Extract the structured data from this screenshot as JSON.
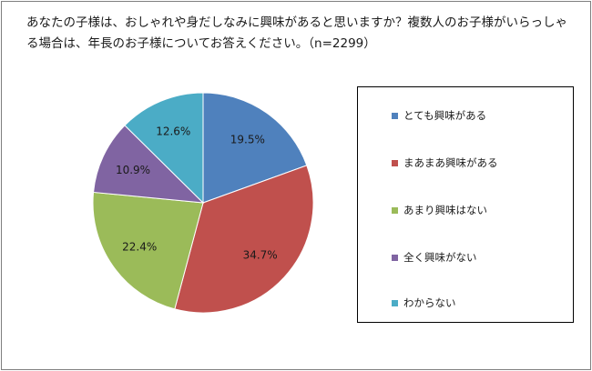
{
  "chart_data": {
    "type": "pie",
    "title": "あなたの子様は、おしゃれや身だしなみに興味があると思いますか？複数人のお子様がいらっしゃる場合は、年長のお子様についてお答えください。（n=2299）",
    "title_lines": [
      "あなたの子様は、おしゃれや身だしなみに興味があると思いますか？複数人のお子様がいらっしゃ",
      "る場合は、年長のお子様についてお答えください。（n=2299）"
    ],
    "slices": [
      {
        "label": "とても興味がある",
        "value": 19.5,
        "display": "19.5%",
        "color": "#4f81bd"
      },
      {
        "label": "まあまあ興味がある",
        "value": 34.7,
        "display": "34.7%",
        "color": "#c0504d"
      },
      {
        "label": "あまり興味はない",
        "value": 22.4,
        "display": "22.4%",
        "color": "#9bbb59"
      },
      {
        "label": "全く興味がない",
        "value": 10.9,
        "display": "10.9%",
        "color": "#8064a2"
      },
      {
        "label": "わからない",
        "value": 12.6,
        "display": "12.6%",
        "color": "#4bacc6"
      }
    ],
    "start": "12 o'clock",
    "direction": "clockwise",
    "legend_position": "right"
  }
}
